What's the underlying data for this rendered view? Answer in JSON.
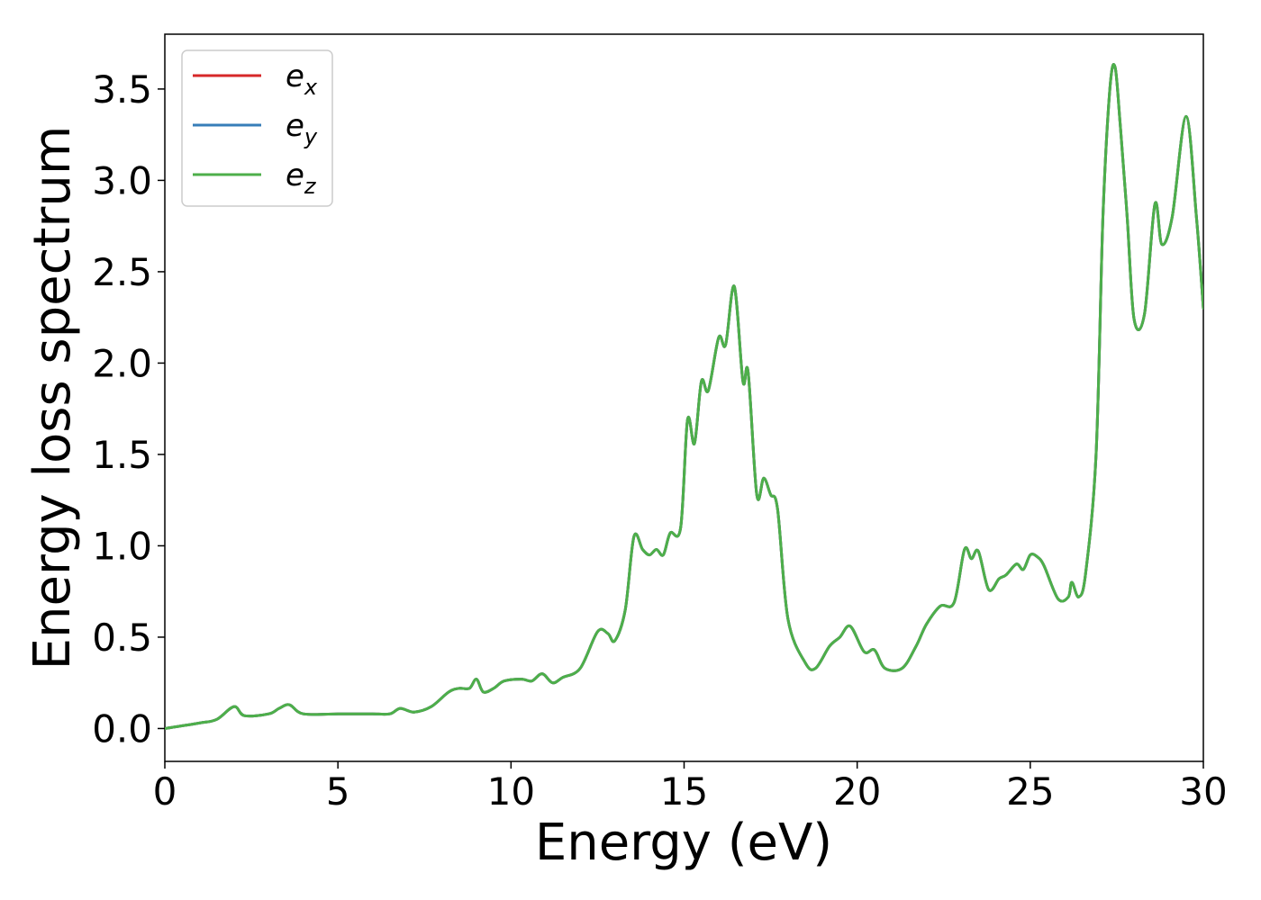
{
  "chart_data": {
    "type": "line",
    "xlabel": "Energy (eV)",
    "ylabel": "Energy loss spectrum",
    "xlim": [
      0,
      30
    ],
    "ylim": [
      -0.18,
      3.8
    ],
    "xticks": [
      0,
      5,
      10,
      15,
      20,
      25,
      30
    ],
    "yticks": [
      0.0,
      0.5,
      1.0,
      1.5,
      2.0,
      2.5,
      3.0,
      3.5
    ],
    "grid": false,
    "legend_position": "top-left",
    "series": [
      {
        "name": "e",
        "subscript": "x",
        "color": "#d62728",
        "points": [
          [
            0,
            0.0
          ],
          [
            1,
            0.03
          ],
          [
            1.5,
            0.05
          ],
          [
            2,
            0.12
          ],
          [
            2.3,
            0.07
          ],
          [
            3,
            0.08
          ],
          [
            3.3,
            0.11
          ],
          [
            3.6,
            0.13
          ],
          [
            4,
            0.08
          ],
          [
            5,
            0.08
          ],
          [
            5.5,
            0.08
          ],
          [
            6,
            0.08
          ],
          [
            6.5,
            0.08
          ],
          [
            6.8,
            0.11
          ],
          [
            7.2,
            0.09
          ],
          [
            7.7,
            0.12
          ],
          [
            8.2,
            0.2
          ],
          [
            8.5,
            0.22
          ],
          [
            8.8,
            0.22
          ],
          [
            9,
            0.27
          ],
          [
            9.2,
            0.2
          ],
          [
            9.5,
            0.22
          ],
          [
            9.8,
            0.26
          ],
          [
            10.3,
            0.27
          ],
          [
            10.6,
            0.26
          ],
          [
            10.9,
            0.3
          ],
          [
            11.2,
            0.25
          ],
          [
            11.5,
            0.28
          ],
          [
            12,
            0.33
          ],
          [
            12.5,
            0.53
          ],
          [
            12.8,
            0.52
          ],
          [
            13,
            0.48
          ],
          [
            13.3,
            0.65
          ],
          [
            13.55,
            1.05
          ],
          [
            13.8,
            0.98
          ],
          [
            14,
            0.95
          ],
          [
            14.2,
            0.98
          ],
          [
            14.4,
            0.95
          ],
          [
            14.6,
            1.07
          ],
          [
            14.9,
            1.1
          ],
          [
            15.1,
            1.69
          ],
          [
            15.3,
            1.56
          ],
          [
            15.5,
            1.9
          ],
          [
            15.7,
            1.85
          ],
          [
            16.0,
            2.14
          ],
          [
            16.2,
            2.1
          ],
          [
            16.45,
            2.42
          ],
          [
            16.7,
            1.9
          ],
          [
            16.85,
            1.95
          ],
          [
            17.1,
            1.28
          ],
          [
            17.3,
            1.37
          ],
          [
            17.5,
            1.28
          ],
          [
            17.7,
            1.2
          ],
          [
            18.0,
            0.6
          ],
          [
            18.5,
            0.36
          ],
          [
            18.8,
            0.33
          ],
          [
            19.2,
            0.45
          ],
          [
            19.5,
            0.5
          ],
          [
            19.8,
            0.56
          ],
          [
            20.2,
            0.42
          ],
          [
            20.5,
            0.43
          ],
          [
            20.8,
            0.33
          ],
          [
            21.3,
            0.33
          ],
          [
            21.7,
            0.45
          ],
          [
            22,
            0.57
          ],
          [
            22.4,
            0.67
          ],
          [
            22.8,
            0.69
          ],
          [
            23.1,
            0.98
          ],
          [
            23.3,
            0.93
          ],
          [
            23.5,
            0.97
          ],
          [
            23.8,
            0.76
          ],
          [
            24.1,
            0.82
          ],
          [
            24.3,
            0.84
          ],
          [
            24.6,
            0.9
          ],
          [
            24.8,
            0.87
          ],
          [
            25.0,
            0.95
          ],
          [
            25.2,
            0.94
          ],
          [
            25.4,
            0.89
          ],
          [
            25.8,
            0.71
          ],
          [
            26.1,
            0.72
          ],
          [
            26.2,
            0.8
          ],
          [
            26.4,
            0.72
          ],
          [
            26.6,
            0.85
          ],
          [
            26.9,
            1.5
          ],
          [
            27.1,
            2.8
          ],
          [
            27.3,
            3.5
          ],
          [
            27.45,
            3.62
          ],
          [
            27.6,
            3.3
          ],
          [
            27.8,
            2.8
          ],
          [
            28.0,
            2.24
          ],
          [
            28.3,
            2.27
          ],
          [
            28.6,
            2.87
          ],
          [
            28.8,
            2.65
          ],
          [
            29.1,
            2.8
          ],
          [
            29.5,
            3.35
          ],
          [
            29.8,
            2.8
          ],
          [
            30,
            2.3
          ]
        ]
      },
      {
        "name": "e",
        "subscript": "y",
        "color": "#377eb8",
        "points": [
          [
            0,
            0.0
          ],
          [
            1,
            0.03
          ],
          [
            1.5,
            0.05
          ],
          [
            2,
            0.12
          ],
          [
            2.3,
            0.07
          ],
          [
            3,
            0.08
          ],
          [
            3.3,
            0.11
          ],
          [
            3.6,
            0.13
          ],
          [
            4,
            0.08
          ],
          [
            5,
            0.08
          ],
          [
            5.5,
            0.08
          ],
          [
            6,
            0.08
          ],
          [
            6.5,
            0.08
          ],
          [
            6.8,
            0.11
          ],
          [
            7.2,
            0.09
          ],
          [
            7.7,
            0.12
          ],
          [
            8.2,
            0.2
          ],
          [
            8.5,
            0.22
          ],
          [
            8.8,
            0.22
          ],
          [
            9,
            0.27
          ],
          [
            9.2,
            0.2
          ],
          [
            9.5,
            0.22
          ],
          [
            9.8,
            0.26
          ],
          [
            10.3,
            0.27
          ],
          [
            10.6,
            0.26
          ],
          [
            10.9,
            0.3
          ],
          [
            11.2,
            0.25
          ],
          [
            11.5,
            0.28
          ],
          [
            12,
            0.33
          ],
          [
            12.5,
            0.53
          ],
          [
            12.8,
            0.52
          ],
          [
            13,
            0.48
          ],
          [
            13.3,
            0.65
          ],
          [
            13.55,
            1.05
          ],
          [
            13.8,
            0.98
          ],
          [
            14,
            0.95
          ],
          [
            14.2,
            0.98
          ],
          [
            14.4,
            0.95
          ],
          [
            14.6,
            1.07
          ],
          [
            14.9,
            1.1
          ],
          [
            15.1,
            1.69
          ],
          [
            15.3,
            1.56
          ],
          [
            15.5,
            1.9
          ],
          [
            15.7,
            1.85
          ],
          [
            16.0,
            2.14
          ],
          [
            16.2,
            2.1
          ],
          [
            16.45,
            2.42
          ],
          [
            16.7,
            1.9
          ],
          [
            16.85,
            1.95
          ],
          [
            17.1,
            1.28
          ],
          [
            17.3,
            1.37
          ],
          [
            17.5,
            1.28
          ],
          [
            17.7,
            1.2
          ],
          [
            18.0,
            0.6
          ],
          [
            18.5,
            0.36
          ],
          [
            18.8,
            0.33
          ],
          [
            19.2,
            0.45
          ],
          [
            19.5,
            0.5
          ],
          [
            19.8,
            0.56
          ],
          [
            20.2,
            0.42
          ],
          [
            20.5,
            0.43
          ],
          [
            20.8,
            0.33
          ],
          [
            21.3,
            0.33
          ],
          [
            21.7,
            0.45
          ],
          [
            22,
            0.57
          ],
          [
            22.4,
            0.67
          ],
          [
            22.8,
            0.69
          ],
          [
            23.1,
            0.98
          ],
          [
            23.3,
            0.93
          ],
          [
            23.5,
            0.97
          ],
          [
            23.8,
            0.76
          ],
          [
            24.1,
            0.82
          ],
          [
            24.3,
            0.84
          ],
          [
            24.6,
            0.9
          ],
          [
            24.8,
            0.87
          ],
          [
            25.0,
            0.95
          ],
          [
            25.2,
            0.94
          ],
          [
            25.4,
            0.89
          ],
          [
            25.8,
            0.71
          ],
          [
            26.1,
            0.72
          ],
          [
            26.2,
            0.8
          ],
          [
            26.4,
            0.72
          ],
          [
            26.6,
            0.85
          ],
          [
            26.9,
            1.5
          ],
          [
            27.1,
            2.8
          ],
          [
            27.3,
            3.5
          ],
          [
            27.45,
            3.62
          ],
          [
            27.6,
            3.3
          ],
          [
            27.8,
            2.8
          ],
          [
            28.0,
            2.24
          ],
          [
            28.3,
            2.27
          ],
          [
            28.6,
            2.87
          ],
          [
            28.8,
            2.65
          ],
          [
            29.1,
            2.8
          ],
          [
            29.5,
            3.35
          ],
          [
            29.8,
            2.8
          ],
          [
            30,
            2.3
          ]
        ]
      },
      {
        "name": "e",
        "subscript": "z",
        "color": "#4daf4a",
        "points": [
          [
            0,
            0.0
          ],
          [
            1,
            0.03
          ],
          [
            1.5,
            0.05
          ],
          [
            2,
            0.12
          ],
          [
            2.3,
            0.07
          ],
          [
            3,
            0.08
          ],
          [
            3.3,
            0.11
          ],
          [
            3.6,
            0.13
          ],
          [
            4,
            0.08
          ],
          [
            5,
            0.08
          ],
          [
            5.5,
            0.08
          ],
          [
            6,
            0.08
          ],
          [
            6.5,
            0.08
          ],
          [
            6.8,
            0.11
          ],
          [
            7.2,
            0.09
          ],
          [
            7.7,
            0.12
          ],
          [
            8.2,
            0.2
          ],
          [
            8.5,
            0.22
          ],
          [
            8.8,
            0.22
          ],
          [
            9,
            0.27
          ],
          [
            9.2,
            0.2
          ],
          [
            9.5,
            0.22
          ],
          [
            9.8,
            0.26
          ],
          [
            10.3,
            0.27
          ],
          [
            10.6,
            0.26
          ],
          [
            10.9,
            0.3
          ],
          [
            11.2,
            0.25
          ],
          [
            11.5,
            0.28
          ],
          [
            12,
            0.33
          ],
          [
            12.5,
            0.53
          ],
          [
            12.8,
            0.52
          ],
          [
            13,
            0.48
          ],
          [
            13.3,
            0.65
          ],
          [
            13.55,
            1.05
          ],
          [
            13.8,
            0.98
          ],
          [
            14,
            0.95
          ],
          [
            14.2,
            0.98
          ],
          [
            14.4,
            0.95
          ],
          [
            14.6,
            1.07
          ],
          [
            14.9,
            1.1
          ],
          [
            15.1,
            1.69
          ],
          [
            15.3,
            1.56
          ],
          [
            15.5,
            1.9
          ],
          [
            15.7,
            1.85
          ],
          [
            16.0,
            2.14
          ],
          [
            16.2,
            2.1
          ],
          [
            16.45,
            2.42
          ],
          [
            16.7,
            1.9
          ],
          [
            16.85,
            1.95
          ],
          [
            17.1,
            1.28
          ],
          [
            17.3,
            1.37
          ],
          [
            17.5,
            1.28
          ],
          [
            17.7,
            1.2
          ],
          [
            18.0,
            0.6
          ],
          [
            18.5,
            0.36
          ],
          [
            18.8,
            0.33
          ],
          [
            19.2,
            0.45
          ],
          [
            19.5,
            0.5
          ],
          [
            19.8,
            0.56
          ],
          [
            20.2,
            0.42
          ],
          [
            20.5,
            0.43
          ],
          [
            20.8,
            0.33
          ],
          [
            21.3,
            0.33
          ],
          [
            21.7,
            0.45
          ],
          [
            22,
            0.57
          ],
          [
            22.4,
            0.67
          ],
          [
            22.8,
            0.69
          ],
          [
            23.1,
            0.98
          ],
          [
            23.3,
            0.93
          ],
          [
            23.5,
            0.97
          ],
          [
            23.8,
            0.76
          ],
          [
            24.1,
            0.82
          ],
          [
            24.3,
            0.84
          ],
          [
            24.6,
            0.9
          ],
          [
            24.8,
            0.87
          ],
          [
            25.0,
            0.95
          ],
          [
            25.2,
            0.94
          ],
          [
            25.4,
            0.89
          ],
          [
            25.8,
            0.71
          ],
          [
            26.1,
            0.72
          ],
          [
            26.2,
            0.8
          ],
          [
            26.4,
            0.72
          ],
          [
            26.6,
            0.85
          ],
          [
            26.9,
            1.5
          ],
          [
            27.1,
            2.8
          ],
          [
            27.3,
            3.5
          ],
          [
            27.45,
            3.62
          ],
          [
            27.6,
            3.3
          ],
          [
            27.8,
            2.8
          ],
          [
            28.0,
            2.24
          ],
          [
            28.3,
            2.27
          ],
          [
            28.6,
            2.87
          ],
          [
            28.8,
            2.65
          ],
          [
            29.1,
            2.8
          ],
          [
            29.5,
            3.35
          ],
          [
            29.8,
            2.8
          ],
          [
            30,
            2.3
          ]
        ]
      }
    ]
  }
}
